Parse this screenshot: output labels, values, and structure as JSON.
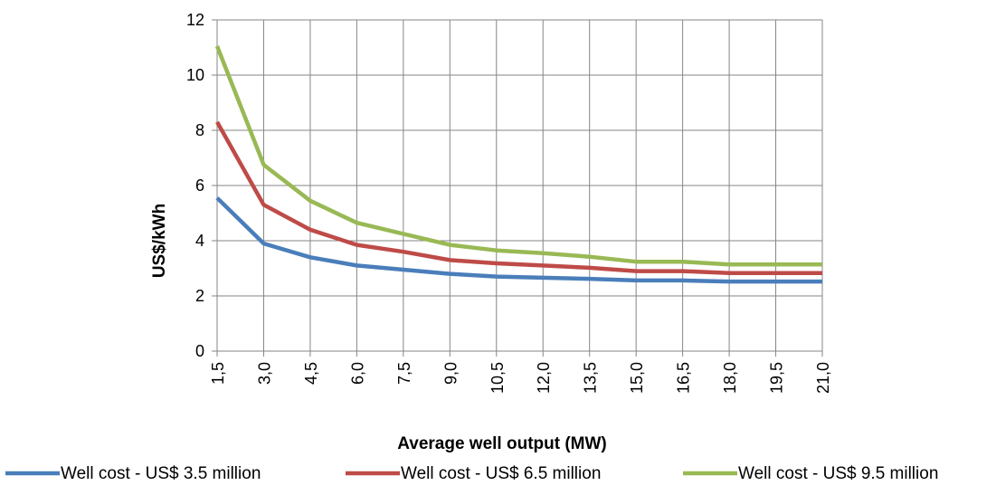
{
  "chart_data": {
    "type": "line",
    "title": "",
    "xlabel": "Average well output (MW)",
    "ylabel": "US$/kWh",
    "ylim": [
      0,
      12
    ],
    "yticks": [
      "0",
      "2",
      "4",
      "6",
      "8",
      "10",
      "12"
    ],
    "categories": [
      "1,5",
      "3,0",
      "4,5",
      "6,0",
      "7,5",
      "9,0",
      "10,5",
      "12,0",
      "13,5",
      "15,0",
      "16,5",
      "18,0",
      "19,5",
      "21,0"
    ],
    "grid": true,
    "legend_position": "bottom",
    "series": [
      {
        "name": "Well cost -  US$ 3.5 million",
        "color": "#4a7ebb",
        "values": [
          5.55,
          3.9,
          3.4,
          3.1,
          2.95,
          2.8,
          2.7,
          2.66,
          2.62,
          2.56,
          2.56,
          2.52,
          2.52,
          2.52
        ]
      },
      {
        "name": "Well cost -  US$ 6.5 million",
        "color": "#be4b48",
        "values": [
          8.3,
          5.3,
          4.4,
          3.85,
          3.6,
          3.3,
          3.18,
          3.1,
          3.02,
          2.9,
          2.9,
          2.83,
          2.83,
          2.83
        ]
      },
      {
        "name": "Well cost -  US$ 9.5 million",
        "color": "#98b954",
        "values": [
          11.05,
          6.75,
          5.45,
          4.65,
          4.25,
          3.85,
          3.65,
          3.55,
          3.42,
          3.24,
          3.24,
          3.14,
          3.14,
          3.14
        ]
      }
    ]
  }
}
